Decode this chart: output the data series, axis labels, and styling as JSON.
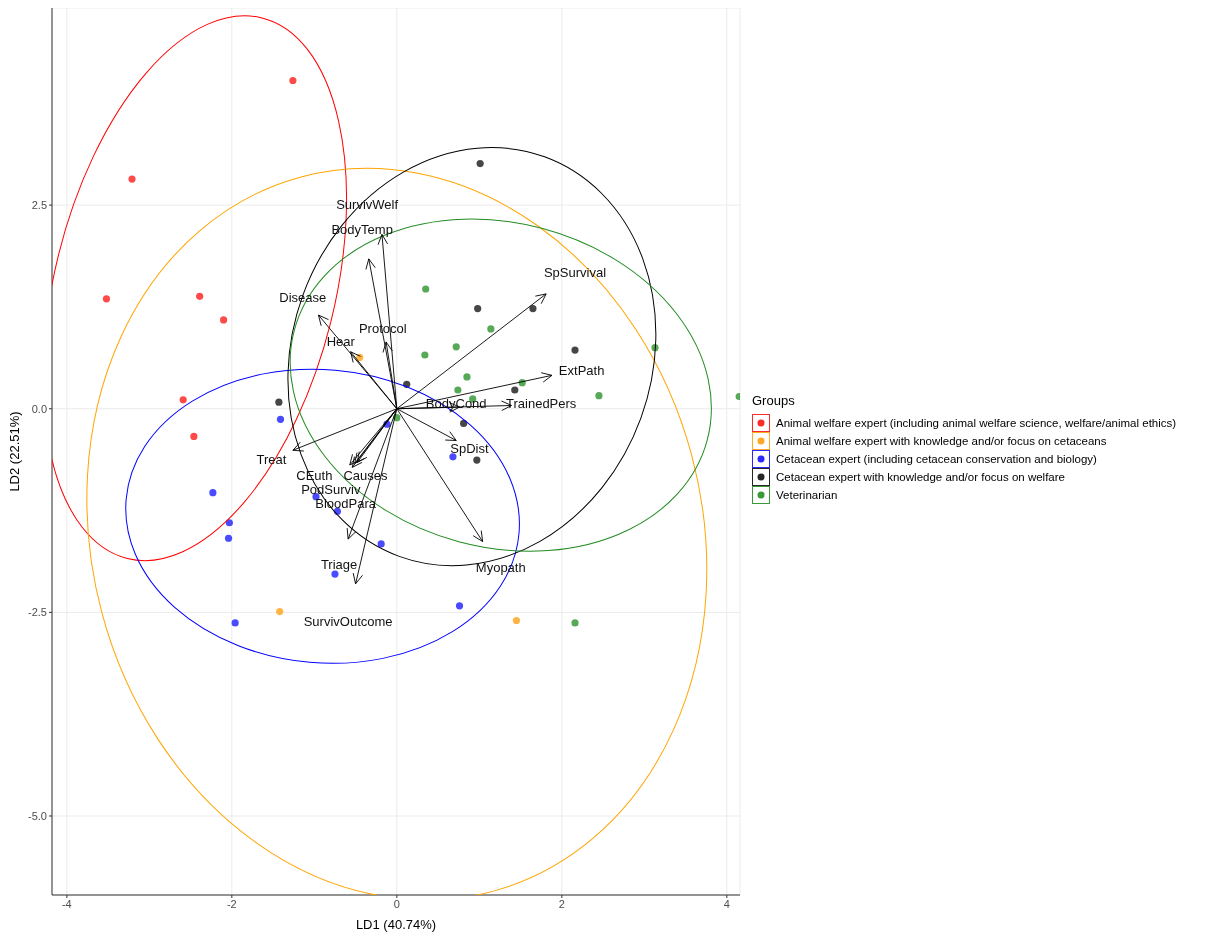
{
  "chart_data": {
    "type": "scatter",
    "xlabel": "LD1 (40.74%)",
    "ylabel": "LD2 (22.51%)",
    "legend_title": "Groups",
    "legend": "right",
    "grid": true,
    "marker": "circle",
    "xlim": [
      -4.18,
      4.16
    ],
    "ylim": [
      -5.97,
      4.92
    ],
    "xticks": [
      -4,
      -2,
      0,
      2,
      4
    ],
    "yticks": [
      {
        "value": 2.5,
        "label": "2.5"
      },
      {
        "value": 0,
        "label": "0.0"
      },
      {
        "value": -2.5,
        "label": "-2.5"
      },
      {
        "value": -5,
        "label": "-5.0"
      }
    ],
    "series": [
      {
        "name": "Animal welfare expert (including animal welfare science, welfare/animal ethics)",
        "color": "#ff2a2a",
        "x": [
          -1.26,
          -3.21,
          -3.52,
          -2.39,
          -2.1,
          -2.59,
          -2.46
        ],
        "values": [
          4.03,
          2.82,
          1.35,
          1.38,
          1.09,
          0.11,
          -0.34
        ]
      },
      {
        "name": "Animal welfare expert with knowledge and/or focus on cetaceans",
        "color": "#ffa726",
        "x": [
          -0.45,
          -1.42,
          1.45
        ],
        "values": [
          0.63,
          -2.49,
          -2.6
        ]
      },
      {
        "name": "Cetacean expert (including cetacean conservation and biology)",
        "color": "#2a2aff",
        "x": [
          -1.41,
          -2.23,
          -2.03,
          -2.04,
          -1.96,
          -0.98,
          -0.72,
          -0.19,
          -0.75,
          -0.12,
          0.68,
          0.76
        ],
        "values": [
          -0.13,
          -1.03,
          -1.4,
          -1.59,
          -2.63,
          -1.08,
          -1.26,
          -1.66,
          -2.03,
          -0.19,
          -0.59,
          -2.42
        ]
      },
      {
        "name": "Cetacean expert with knowledge and/or focus on welfare",
        "color": "#262626",
        "x": [
          1.01,
          -1.43,
          0.12,
          0.98,
          1.65,
          2.16,
          1.43,
          0.81,
          0.97
        ],
        "values": [
          3.01,
          0.08,
          0.3,
          1.23,
          1.23,
          0.72,
          0.23,
          -0.18,
          -0.63
        ]
      },
      {
        "name": "Veterinarian",
        "color": "#3a9a3a",
        "x": [
          0.35,
          1.14,
          0.72,
          0.34,
          0.85,
          0.74,
          0.92,
          1.52,
          2.45,
          3.13,
          2.16,
          0.0,
          4.15
        ],
        "values": [
          1.47,
          0.98,
          0.76,
          0.66,
          0.39,
          0.23,
          0.12,
          0.32,
          0.16,
          0.75,
          -2.63,
          -0.11,
          0.15
        ]
      }
    ],
    "annotations": [
      "SurvivWelf",
      "BodyTemp",
      "Disease",
      "Protocol",
      "Hear",
      "SpSurvival",
      "ExtPath",
      "BodyCond",
      "TrainedPers",
      "SpDist",
      "Myopath",
      "Treat",
      "Causes",
      "CEuth",
      "PodSurviv",
      "BloodPara",
      "Triage",
      "SurvivOutcome"
    ]
  }
}
